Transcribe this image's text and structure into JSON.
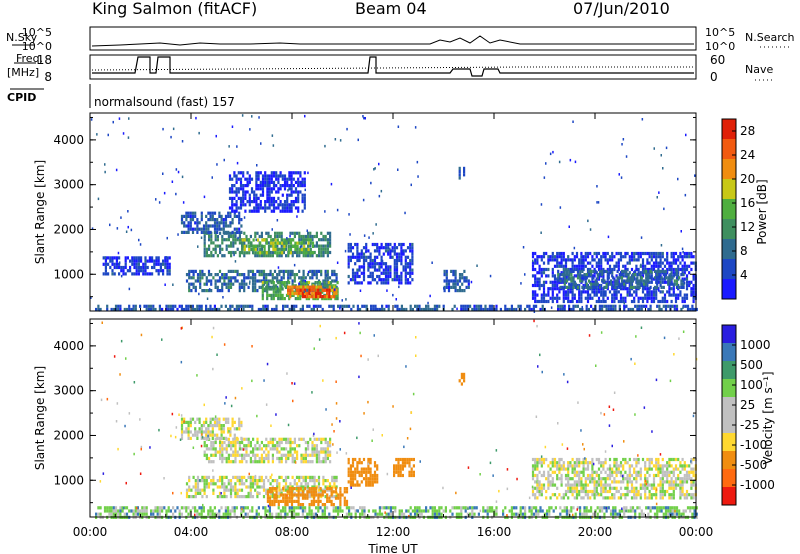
{
  "header": {
    "station": "King Salmon (fitACF)",
    "beam": "Beam 04",
    "date": "07/Jun/2010"
  },
  "aux_panels": {
    "nsky_label": "N.Sky",
    "nsearch_label": "N.Search",
    "freq_label_line1": "Freq.",
    "freq_label_line2": "[MHz]",
    "nave_label": "Nave",
    "cpid_label": "CPID",
    "cpid_text": "normalsound (fast) 157",
    "log_hi": "10^5",
    "log_lo": "10^0",
    "freq_ticks": [
      "18",
      "8"
    ],
    "nave_ticks": [
      "60",
      "0"
    ]
  },
  "colors": {
    "power": [
      "#1a1aff",
      "#1d47c4",
      "#2f6b8f",
      "#3f8f5f",
      "#4fae3f",
      "#c8c817",
      "#f08d10",
      "#f25a10",
      "#e02008"
    ],
    "velocity": [
      "#2a1ee0",
      "#3a78b8",
      "#3e9a6a",
      "#72d04a",
      "#c0c0c0",
      "#c0c0c0",
      "#ffd830",
      "#f08d10",
      "#ff6a10",
      "#ee1a10"
    ]
  },
  "chart_data": [
    {
      "type": "heatmap",
      "name": "power",
      "xlabel": "",
      "ylabel": "Slant Range [km]",
      "xlim": [
        0,
        24
      ],
      "ylim": [
        180,
        4600
      ],
      "yticks": [
        "1000",
        "2000",
        "3000",
        "4000"
      ],
      "colorbar_label": "Power [dB]",
      "colorbar_ticks": [
        "4",
        "8",
        "12",
        "16",
        "20",
        "24",
        "28"
      ],
      "colorbar_range": [
        0,
        30
      ],
      "patches": [
        {
          "t0": 0.2,
          "t1": 24.0,
          "r0": 200,
          "r1": 320,
          "v": 6
        },
        {
          "t0": 3.8,
          "t1": 9.8,
          "r0": 600,
          "r1": 1100,
          "v": 8
        },
        {
          "t0": 6.8,
          "t1": 9.8,
          "r0": 450,
          "r1": 850,
          "v": 14
        },
        {
          "t0": 7.8,
          "t1": 9.8,
          "r0": 500,
          "r1": 750,
          "v": 22
        },
        {
          "t0": 8.3,
          "t1": 9.5,
          "r0": 520,
          "r1": 680,
          "v": 27
        },
        {
          "t0": 4.5,
          "t1": 9.5,
          "r0": 1400,
          "r1": 1950,
          "v": 10
        },
        {
          "t0": 6.0,
          "t1": 8.8,
          "r0": 1500,
          "r1": 1800,
          "v": 15
        },
        {
          "t0": 3.6,
          "t1": 6.0,
          "r0": 1900,
          "r1": 2400,
          "v": 6
        },
        {
          "t0": 5.5,
          "t1": 8.5,
          "r0": 2400,
          "r1": 3300,
          "v": 3
        },
        {
          "t0": 0.5,
          "t1": 3.2,
          "r0": 1000,
          "r1": 1400,
          "v": 4
        },
        {
          "t0": 10.2,
          "t1": 12.8,
          "r0": 800,
          "r1": 1700,
          "v": 4
        },
        {
          "t0": 14.0,
          "t1": 15.0,
          "r0": 600,
          "r1": 1100,
          "v": 6
        },
        {
          "t0": 14.6,
          "t1": 14.8,
          "r0": 3150,
          "r1": 3400,
          "v": 6
        },
        {
          "t0": 17.5,
          "t1": 24.0,
          "r0": 400,
          "r1": 1500,
          "v": 4
        },
        {
          "t0": 18.5,
          "t1": 23.5,
          "r0": 700,
          "r1": 1100,
          "v": 8
        }
      ]
    },
    {
      "type": "heatmap",
      "name": "velocity",
      "xlabel": "Time UT",
      "ylabel": "Slant Range [km]",
      "xlim": [
        0,
        24
      ],
      "ylim": [
        180,
        4600
      ],
      "xticks": [
        "00:00",
        "04:00",
        "08:00",
        "12:00",
        "16:00",
        "20:00",
        "00:00"
      ],
      "yticks": [
        "1000",
        "2000",
        "3000",
        "4000"
      ],
      "colorbar_label": "Velocity [m s⁻¹]",
      "colorbar_ticks": [
        "1000",
        "500",
        "100",
        "25",
        "-25",
        "-100",
        "-500",
        "-1000"
      ],
      "patches": [
        {
          "t0": 3.8,
          "t1": 9.8,
          "r0": 600,
          "r1": 1100,
          "v": 0
        },
        {
          "t0": 7.0,
          "t1": 10.2,
          "r0": 450,
          "r1": 850,
          "v": -300
        },
        {
          "t0": 10.2,
          "t1": 11.4,
          "r0": 900,
          "r1": 1500,
          "v": -300
        },
        {
          "t0": 12.0,
          "t1": 12.8,
          "r0": 1100,
          "r1": 1500,
          "v": -300
        },
        {
          "t0": 4.5,
          "t1": 9.5,
          "r0": 1400,
          "r1": 1950,
          "v": 0
        },
        {
          "t0": 3.6,
          "t1": 6.0,
          "r0": 1900,
          "r1": 2400,
          "v": 0
        },
        {
          "t0": 17.5,
          "t1": 24.0,
          "r0": 600,
          "r1": 1500,
          "v": 0
        },
        {
          "t0": 0.2,
          "t1": 24.0,
          "r0": 200,
          "r1": 420,
          "v": 60
        },
        {
          "t0": 14.6,
          "t1": 14.8,
          "r0": 3150,
          "r1": 3400,
          "v": -200
        }
      ]
    }
  ]
}
